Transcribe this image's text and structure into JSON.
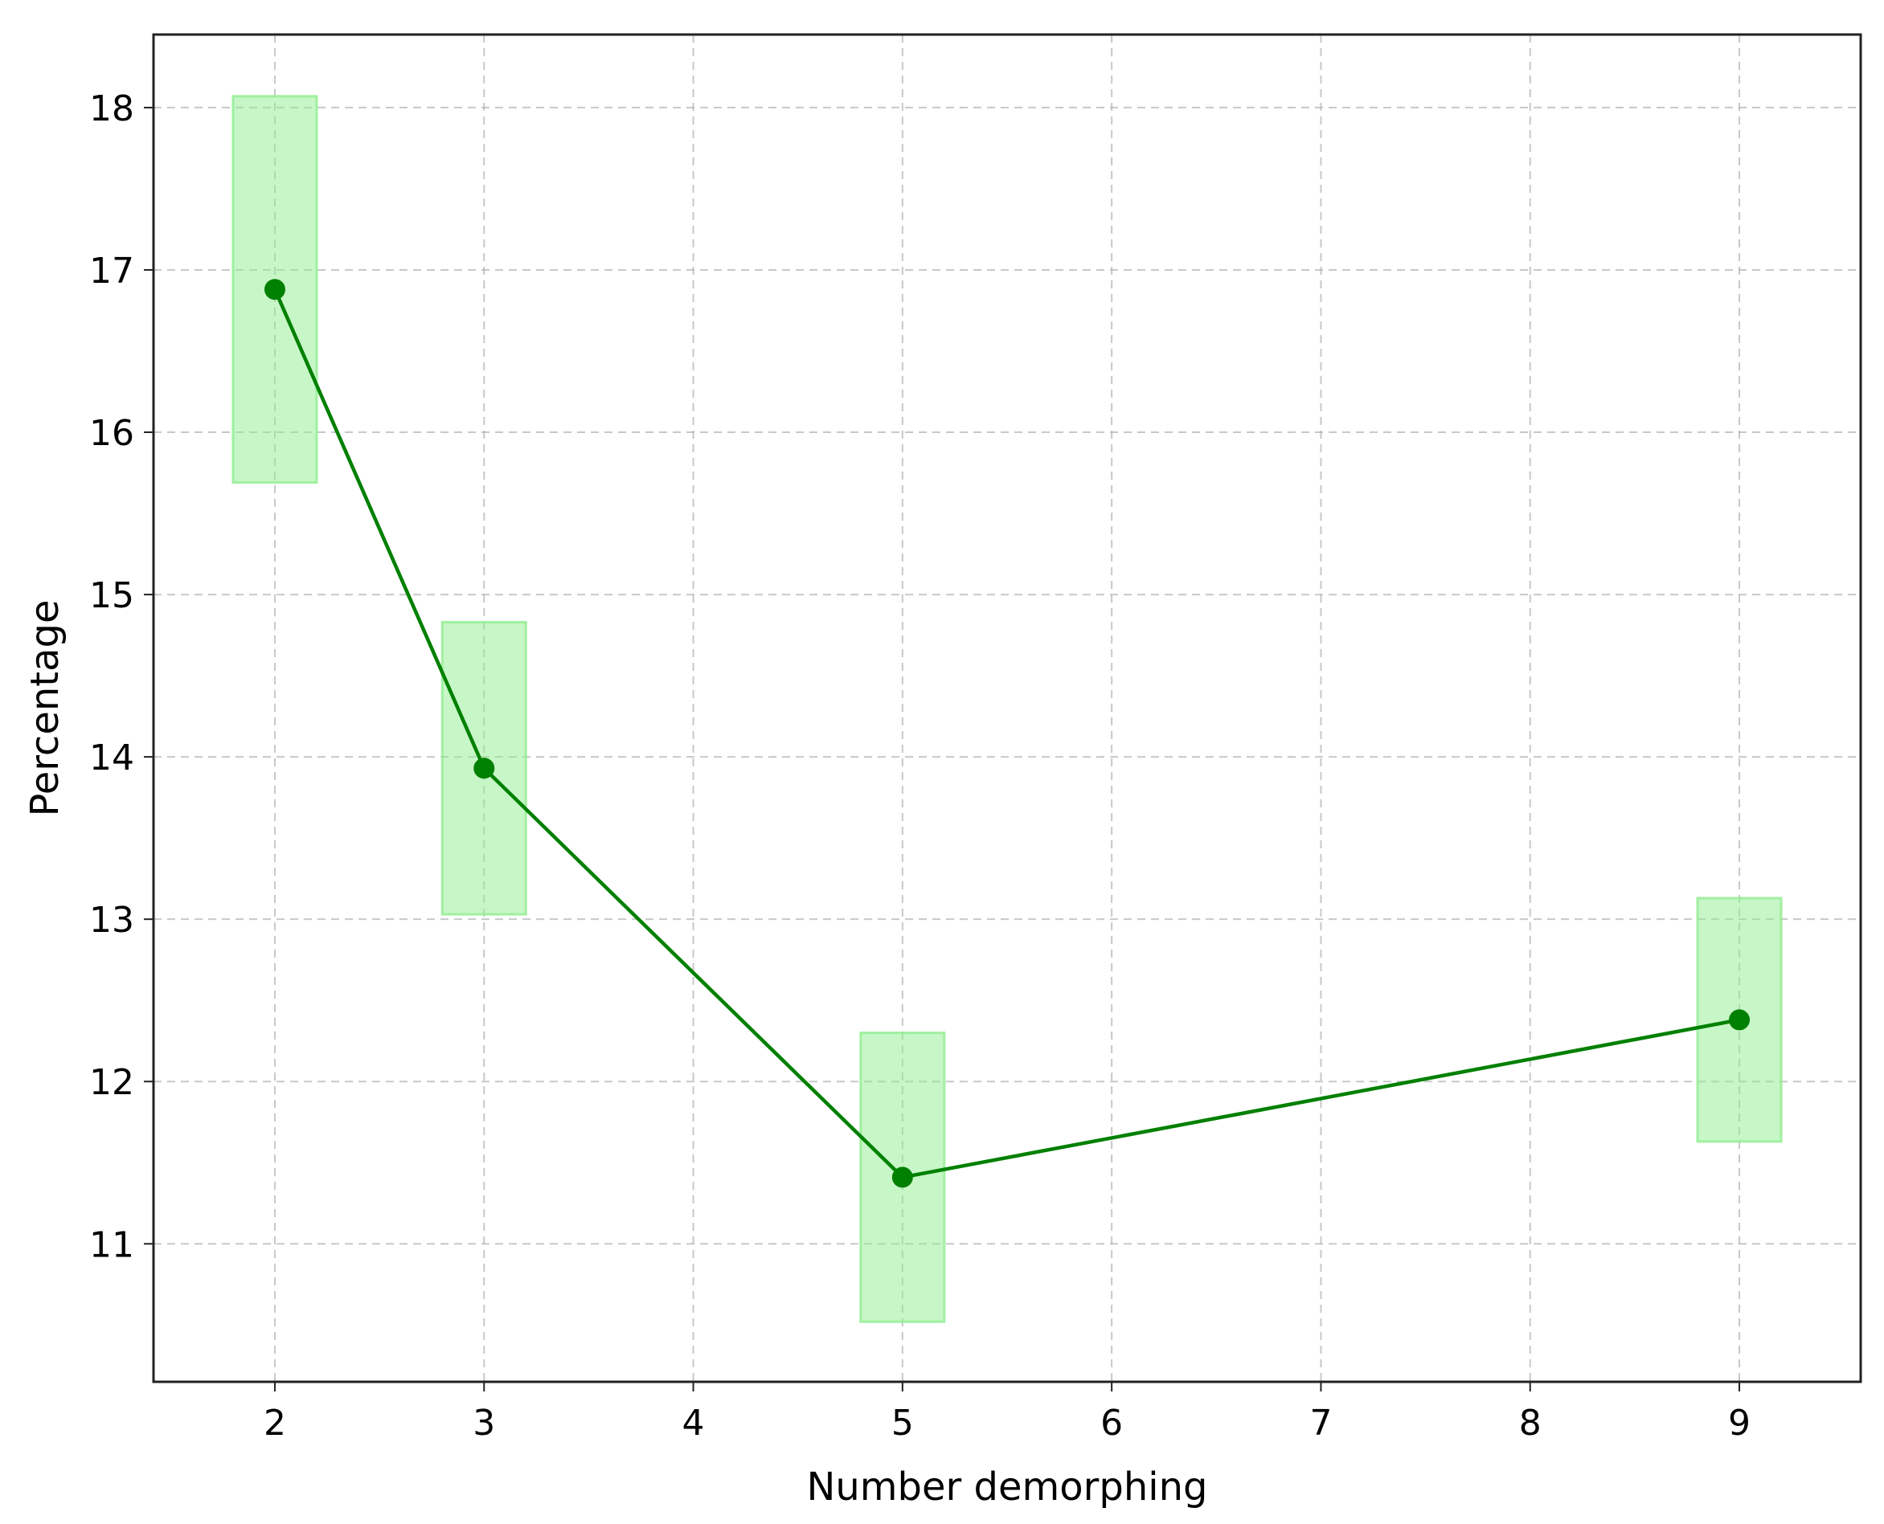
{
  "chart_data": {
    "type": "line",
    "title": "",
    "xlabel": "Number demorphing",
    "ylabel": "Percentage",
    "xlim": [
      1.42,
      9.58
    ],
    "ylim": [
      10.15,
      18.45
    ],
    "x_ticks": [
      2,
      3,
      4,
      5,
      6,
      7,
      8,
      9
    ],
    "y_ticks": [
      11,
      12,
      13,
      14,
      15,
      16,
      17,
      18
    ],
    "grid": true,
    "grid_style": "dashed",
    "series": [
      {
        "x": [
          2,
          3,
          5,
          9
        ],
        "y": [
          16.88,
          13.93,
          11.41,
          12.38
        ],
        "band_low": [
          15.69,
          13.03,
          10.52,
          11.63
        ],
        "band_high": [
          18.07,
          14.83,
          12.3,
          13.13
        ],
        "band_half_width": 0.2,
        "color": "#008000",
        "band_color": "#90ee90"
      }
    ]
  }
}
